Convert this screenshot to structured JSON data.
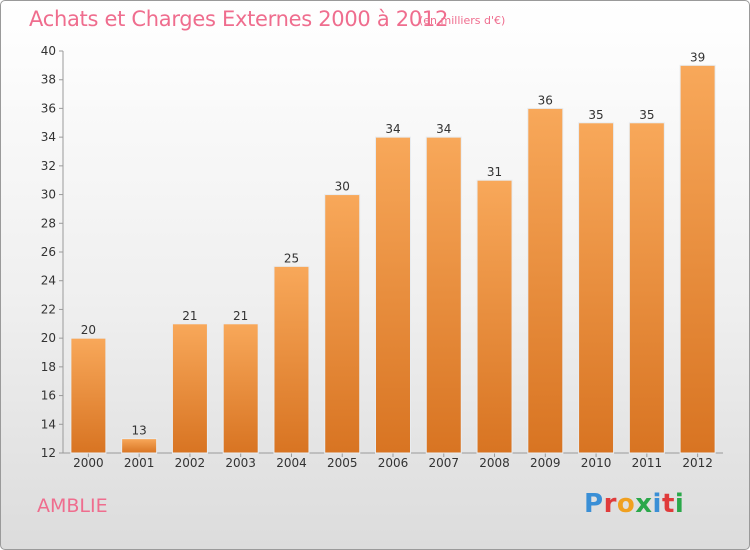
{
  "title": "Achats et Charges Externes 2000 à 2012",
  "unit_note": "(en milliers d'€)",
  "commune": "AMBLIE",
  "logo": {
    "letters": [
      "P",
      "r",
      "o",
      "x",
      "i",
      "t",
      "i"
    ],
    "colors": [
      "#3a8fd6",
      "#e03b3b",
      "#f0a020",
      "#2aa84a",
      "#3a8fd6",
      "#e03b3b",
      "#2aa84a"
    ]
  },
  "colors": {
    "bar_light": "#f8a85a",
    "bar_dark": "#d87422",
    "title": "#ef6d8e"
  },
  "chart_data": {
    "type": "bar",
    "title": "Achats et Charges Externes 2000 à 2012",
    "categories": [
      "2000",
      "2001",
      "2002",
      "2003",
      "2004",
      "2005",
      "2006",
      "2007",
      "2008",
      "2009",
      "2010",
      "2011",
      "2012"
    ],
    "values": [
      20,
      13,
      21,
      21,
      25,
      30,
      34,
      34,
      31,
      36,
      35,
      35,
      39
    ],
    "ylim": [
      12,
      40
    ],
    "yticks": [
      12,
      14,
      16,
      18,
      20,
      22,
      24,
      26,
      28,
      30,
      32,
      34,
      36,
      38,
      40
    ],
    "grid": false,
    "data_labels": true
  }
}
